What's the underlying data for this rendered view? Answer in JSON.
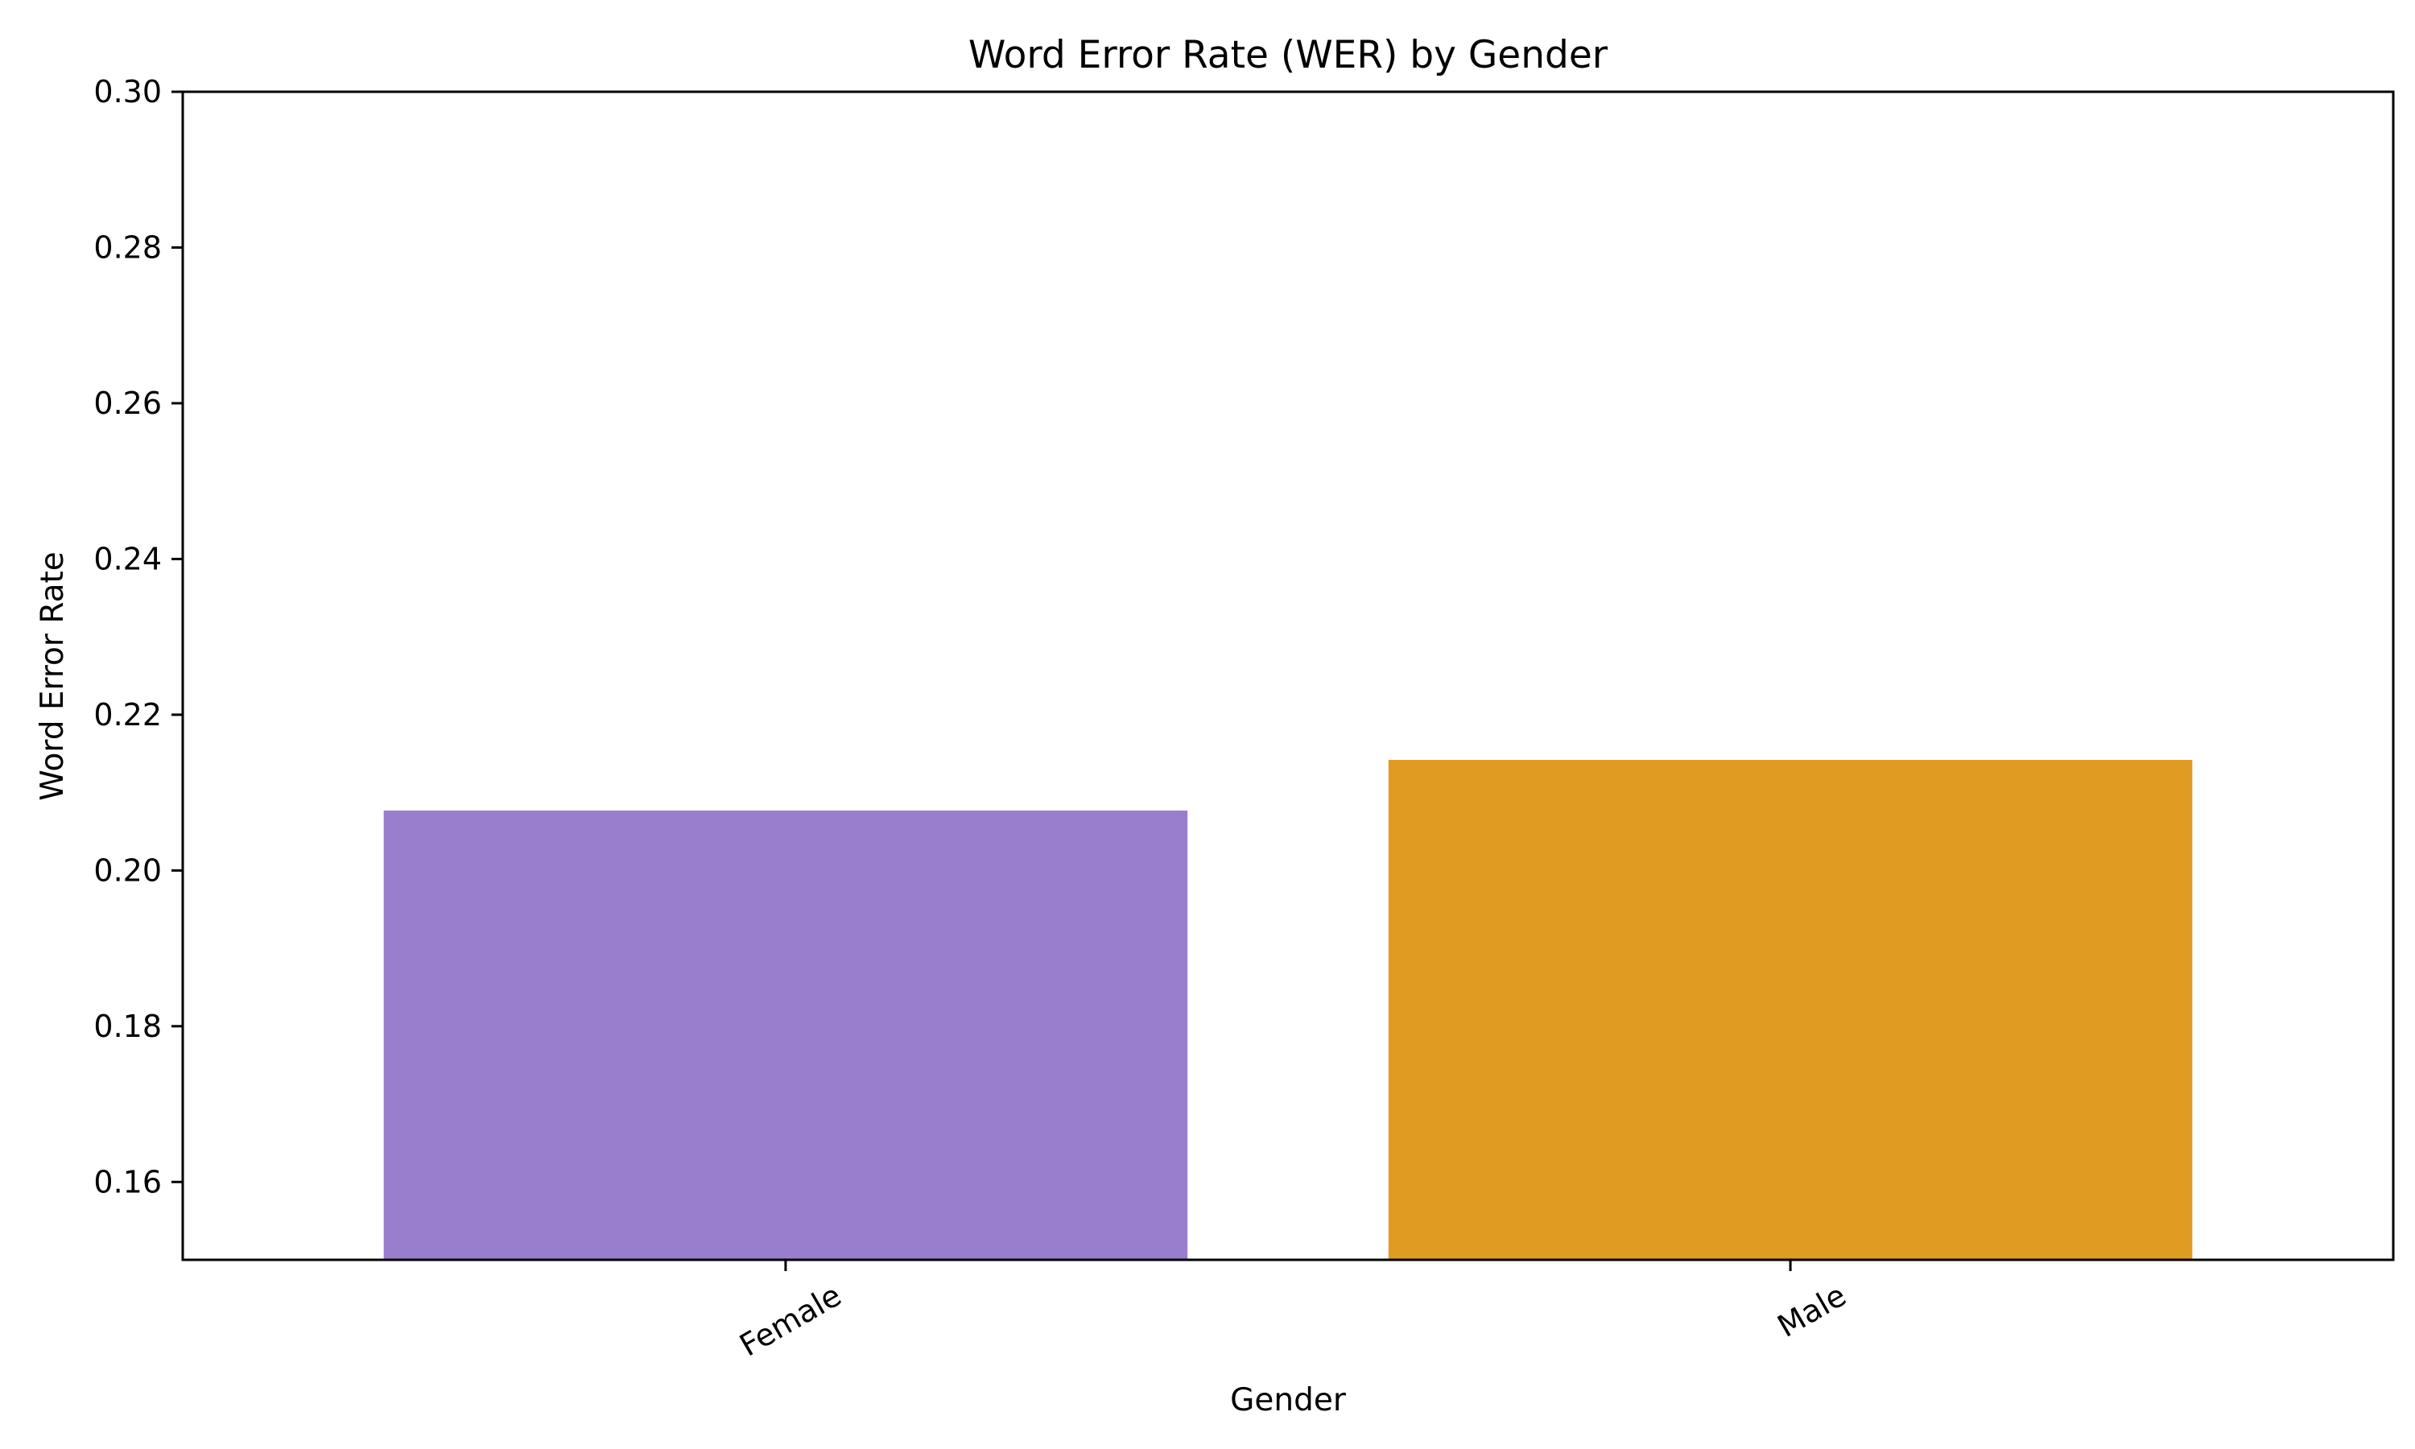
{
  "chart_data": {
    "type": "bar",
    "title": "Word Error Rate (WER) by Gender",
    "xlabel": "Gender",
    "ylabel": "Word Error Rate",
    "categories": [
      "Female",
      "Male"
    ],
    "values": [
      0.2077,
      0.2142
    ],
    "colors": [
      "#9A7ECE",
      "#E09C22"
    ],
    "ylim": [
      0.15,
      0.3
    ],
    "yticks": [
      0.16,
      0.18,
      0.2,
      0.22,
      0.24,
      0.26,
      0.28,
      0.3
    ],
    "ytick_labels": [
      "0.16",
      "0.18",
      "0.20",
      "0.22",
      "0.24",
      "0.26",
      "0.28",
      "0.30"
    ],
    "grid": false,
    "legend": "none"
  }
}
